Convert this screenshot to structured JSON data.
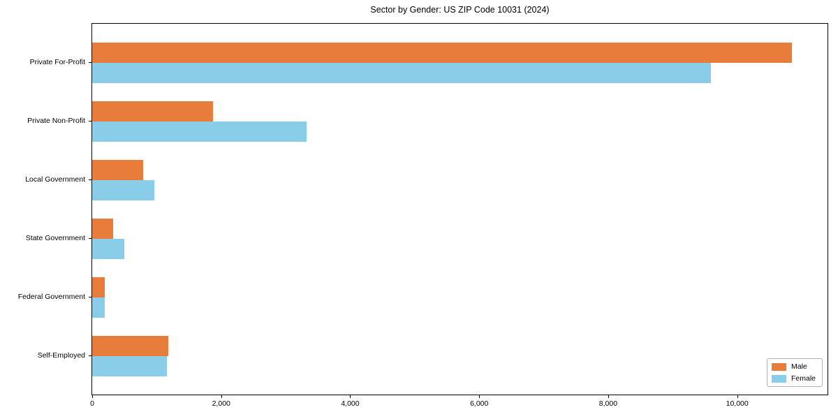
{
  "chart_data": {
    "type": "bar",
    "orientation": "horizontal",
    "title": "Sector by Gender: US ZIP Code 10031 (2024)",
    "categories": [
      "Private For-Profit",
      "Private Non-Profit",
      "Local Government",
      "State Government",
      "Federal Government",
      "Self-Employed"
    ],
    "series": [
      {
        "name": "Male",
        "color": "#E87D3B",
        "values": [
          10850,
          1870,
          795,
          330,
          190,
          1175
        ]
      },
      {
        "name": "Female",
        "color": "#89CDE9",
        "values": [
          9595,
          3325,
          965,
          500,
          190,
          1160
        ]
      }
    ],
    "xlabel": "",
    "ylabel": "",
    "xlim": [
      0,
      11400
    ],
    "x_ticks": [
      0,
      2000,
      4000,
      6000,
      8000,
      10000
    ],
    "x_tick_labels": [
      "0",
      "2,000",
      "4,000",
      "6,000",
      "8,000",
      "10,000"
    ],
    "grid": false,
    "legend_position": "lower right",
    "frame_color": "#000000",
    "background_color": "#ffffff"
  }
}
